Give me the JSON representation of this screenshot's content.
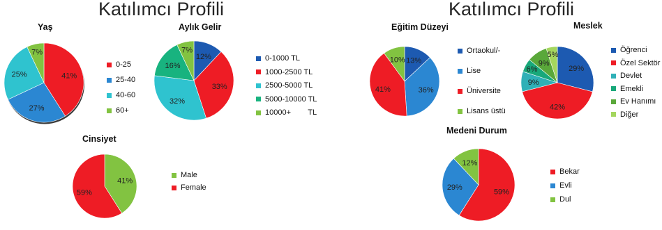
{
  "titles": [
    "Katılımcı Profili",
    "Katılımcı Profili"
  ],
  "chart_data": [
    {
      "type": "pie",
      "title": "Yaş",
      "categories": [
        "0-25",
        "25-40",
        "40-60",
        "60+"
      ],
      "values": [
        41,
        27,
        25,
        7
      ],
      "labels": [
        "41%",
        "27%",
        "25%",
        "7%"
      ],
      "colors": [
        "#ee1c25",
        "#2b87d2",
        "#2fc3cf",
        "#82c341"
      ],
      "legend": "right"
    },
    {
      "type": "pie",
      "title": "Aylık Gelir",
      "categories": [
        "0-1000 TL",
        "1000-2500 TL",
        "2500-5000 TL",
        "5000-10000 TL",
        "10000+        TL"
      ],
      "values": [
        12,
        33,
        32,
        16,
        7
      ],
      "labels": [
        "12%",
        "33%",
        "32%",
        "16%",
        "7%"
      ],
      "colors": [
        "#1d5ab1",
        "#ee1c25",
        "#2fc3cf",
        "#18b37f",
        "#82c341"
      ],
      "legend": "right"
    },
    {
      "type": "pie",
      "title": "Cinsiyet",
      "categories": [
        "Male",
        "Female"
      ],
      "values": [
        41,
        59
      ],
      "labels": [
        "41%",
        "59%"
      ],
      "colors": [
        "#82c341",
        "#ee1c25"
      ],
      "legend": "right"
    },
    {
      "type": "pie",
      "title": "Eğitim Düzeyi",
      "categories": [
        "Ortaokul/-",
        "Lise",
        "Üniversite",
        "Lisans üstü"
      ],
      "values": [
        13,
        36,
        41,
        10
      ],
      "labels": [
        "13%",
        "36%",
        "41%",
        "10%"
      ],
      "colors": [
        "#1d5ab1",
        "#2b87d2",
        "#ee1c25",
        "#82c341"
      ],
      "legend": "right"
    },
    {
      "type": "pie",
      "title": "Meslek",
      "categories": [
        "Öğrenci",
        "Özel Sektör",
        "Devlet",
        "Emekli",
        "Ev Hanımı",
        "Diğer"
      ],
      "values": [
        29,
        42,
        9,
        6,
        9,
        5
      ],
      "labels": [
        "29%",
        "42%",
        "9%",
        "6%",
        "9%",
        "5%"
      ],
      "colors": [
        "#1d5ab1",
        "#ee1c25",
        "#2fb0b7",
        "#18a87a",
        "#5aa83a",
        "#a4d65e"
      ],
      "legend": "right"
    },
    {
      "type": "pie",
      "title": "Medeni Durum",
      "categories": [
        "Bekar",
        "Evli",
        "Dul"
      ],
      "values": [
        59,
        29,
        12
      ],
      "labels": [
        "59%",
        "29%",
        "12%"
      ],
      "colors": [
        "#ee1c25",
        "#2b87d2",
        "#82c341"
      ],
      "legend": "right"
    }
  ]
}
